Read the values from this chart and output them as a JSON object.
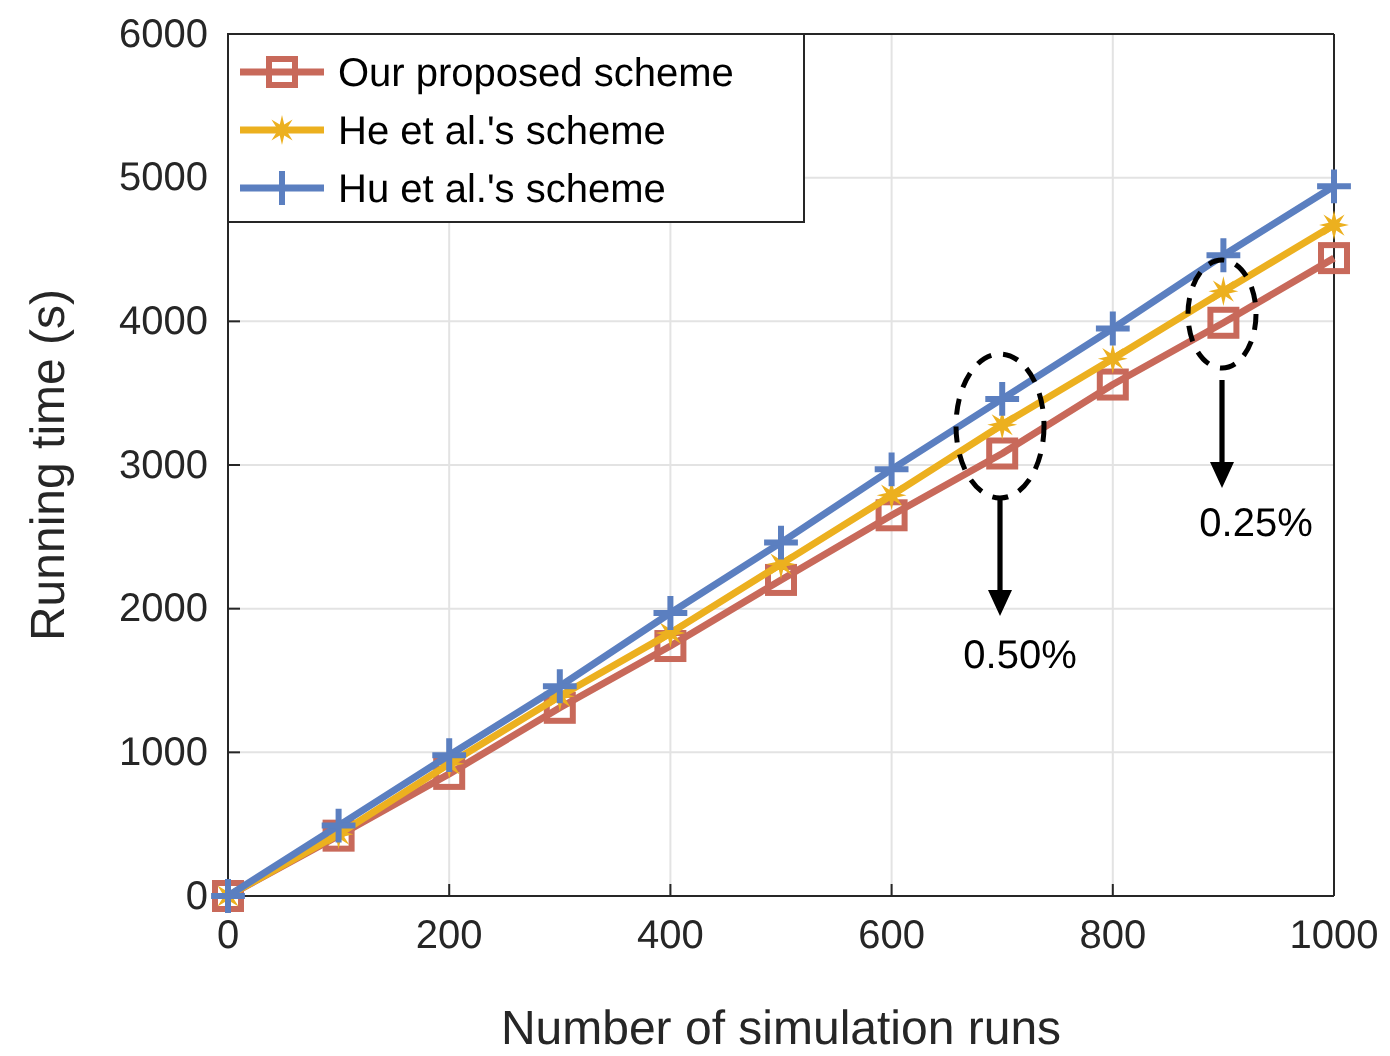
{
  "chart_data": {
    "type": "line",
    "xlabel": "Number of simulation runs",
    "ylabel": "Running time (s)",
    "x": [
      0,
      100,
      200,
      300,
      400,
      500,
      600,
      700,
      800,
      900,
      1000
    ],
    "series": [
      {
        "name": "Our proposed scheme",
        "color": "#c8695a",
        "marker": "square",
        "values": [
          0,
          420,
          850,
          1310,
          1740,
          2200,
          2650,
          3080,
          3560,
          3990,
          4440
        ]
      },
      {
        "name": "He et al.'s scheme",
        "color": "#ecb01f",
        "marker": "star",
        "values": [
          0,
          430,
          920,
          1390,
          1830,
          2310,
          2790,
          3280,
          3740,
          4210,
          4670
        ]
      },
      {
        "name": "Hu et al.'s scheme",
        "color": "#5b7fc0",
        "marker": "cross",
        "values": [
          0,
          490,
          980,
          1460,
          1970,
          2460,
          2970,
          3460,
          3950,
          4460,
          4940
        ]
      }
    ],
    "xlim": [
      0,
      1000
    ],
    "xticks": [
      0,
      200,
      400,
      600,
      800,
      1000
    ],
    "ylim": [
      0,
      6000
    ],
    "yticks": [
      0,
      1000,
      2000,
      3000,
      4000,
      5000,
      6000
    ],
    "grid": true,
    "legend": "top left",
    "line_style": "solid",
    "annotations": [
      "0.50%",
      "0.25%"
    ]
  }
}
